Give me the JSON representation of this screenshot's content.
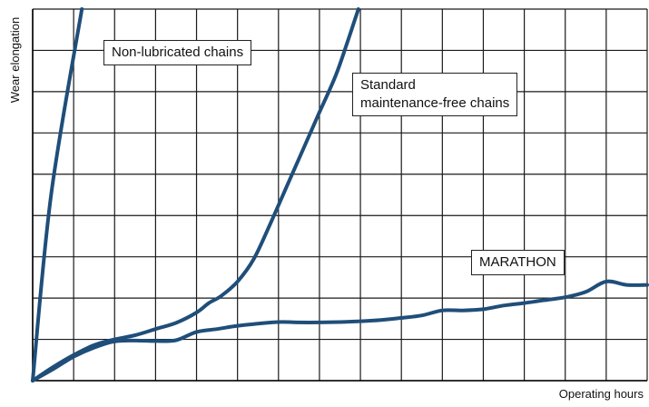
{
  "chart_data": {
    "type": "line",
    "title": "",
    "xlabel": "Operating hours",
    "ylabel": "Wear elongation",
    "xlim": [
      0,
      15
    ],
    "ylim": [
      0,
      9
    ],
    "grid": true,
    "legend": "none",
    "line_color": "#1f4e79",
    "series": [
      {
        "name": "Non-lubricated chains",
        "x": [
          0,
          0.45,
          1.2
        ],
        "y": [
          0,
          4.5,
          9.0
        ]
      },
      {
        "name": "Standard maintenance-free chains",
        "x": [
          0,
          0.5,
          1,
          1.5,
          2,
          2.5,
          3,
          3.5,
          4,
          4.3,
          4.6,
          5,
          5.4,
          5.8,
          6.2,
          6.6,
          7,
          7.4,
          7.7,
          7.85,
          7.95
        ],
        "y": [
          0,
          0.33,
          0.62,
          0.86,
          1.0,
          1.1,
          1.25,
          1.4,
          1.65,
          1.88,
          2.05,
          2.4,
          2.95,
          3.8,
          4.7,
          5.6,
          6.5,
          7.4,
          8.25,
          8.7,
          9.0
        ]
      },
      {
        "name": "MARATHON",
        "x": [
          0,
          0.5,
          1,
          1.5,
          2,
          2.5,
          3,
          3.5,
          4,
          4.5,
          5,
          5.5,
          6,
          6.5,
          7,
          7.5,
          8,
          8.5,
          9,
          9.5,
          10,
          10.5,
          11,
          11.5,
          12,
          12.5,
          13,
          13.5,
          14,
          14.5,
          15
        ],
        "y": [
          0,
          0.28,
          0.58,
          0.8,
          0.95,
          0.97,
          0.96,
          0.98,
          1.18,
          1.25,
          1.33,
          1.38,
          1.42,
          1.41,
          1.41,
          1.42,
          1.44,
          1.47,
          1.52,
          1.58,
          1.7,
          1.7,
          1.73,
          1.82,
          1.88,
          1.95,
          2.02,
          2.15,
          2.4,
          2.32,
          2.32
        ]
      }
    ]
  }
}
